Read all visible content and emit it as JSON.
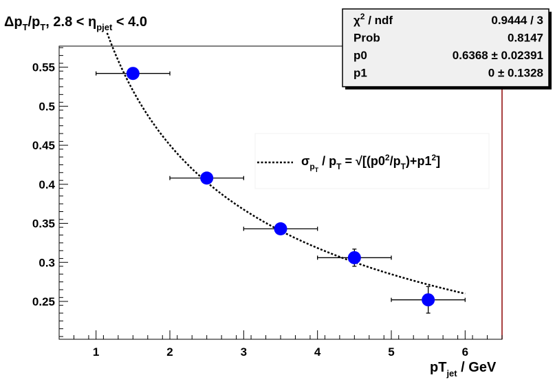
{
  "chart_data": {
    "type": "scatter",
    "title": {
      "prefix": "Δp",
      "sub1": "T",
      "mid1": "/p",
      "sub2": "T",
      "mid2": ", 2.8 < η",
      "sub3": "pjet",
      "suffix": " < 4.0"
    },
    "xlabel": {
      "main": "pT",
      "sub": "jet",
      "unit": " / GeV"
    },
    "ylabel": "",
    "xlim": [
      0.5,
      6.5
    ],
    "ylim": [
      0.2015,
      0.577
    ],
    "x_ticks": [
      "1",
      "2",
      "3",
      "4",
      "5",
      "6"
    ],
    "y_ticks": [
      "0.25",
      "0.3",
      "0.35",
      "0.4",
      "0.45",
      "0.5",
      "0.55"
    ],
    "points": [
      {
        "x": 1.5,
        "y": 0.542,
        "xerr": 0.5,
        "yerr": 0.004
      },
      {
        "x": 2.5,
        "y": 0.408,
        "xerr": 0.5,
        "yerr": 0.004
      },
      {
        "x": 3.5,
        "y": 0.343,
        "xerr": 0.5,
        "yerr": 0.004
      },
      {
        "x": 4.5,
        "y": 0.306,
        "xerr": 0.5,
        "yerr": 0.011
      },
      {
        "x": 5.5,
        "y": 0.252,
        "xerr": 0.5,
        "yerr": 0.017
      }
    ],
    "fit": {
      "function": "sqrt((p0^2/pT)+p1^2)",
      "x_range": [
        1.15,
        6.0
      ],
      "p0": 0.6368,
      "p1": 0
    },
    "legend": {
      "position": "center-right",
      "sigma": "σ",
      "sub_p": "p",
      "sub_T": "T",
      "mid": " / p",
      "sub_T2": "T",
      "eq": " = √[(p0",
      "sup2a": "2",
      "mid3": "/p",
      "sub_T3": "T",
      "end": ")+p1",
      "sup2b": "2",
      "close": "]"
    },
    "stats_box": {
      "rows": [
        {
          "label_main": "χ",
          "label_sup": "2",
          "label_rest": " / ndf",
          "value": "0.9444 / 3"
        },
        {
          "label_main": "Prob",
          "label_sup": "",
          "label_rest": "",
          "value": "0.8147"
        },
        {
          "label_main": "p0",
          "label_sup": "",
          "label_rest": "",
          "value": "0.6368 ± 0.02391"
        },
        {
          "label_main": "p1",
          "label_sup": "",
          "label_rest": "",
          "value": "0 ± 0.1328"
        }
      ]
    },
    "colors": {
      "marker": "#0000ff",
      "fit": "#000000",
      "frame": "#000000",
      "right_axis": "#8b0000"
    }
  }
}
